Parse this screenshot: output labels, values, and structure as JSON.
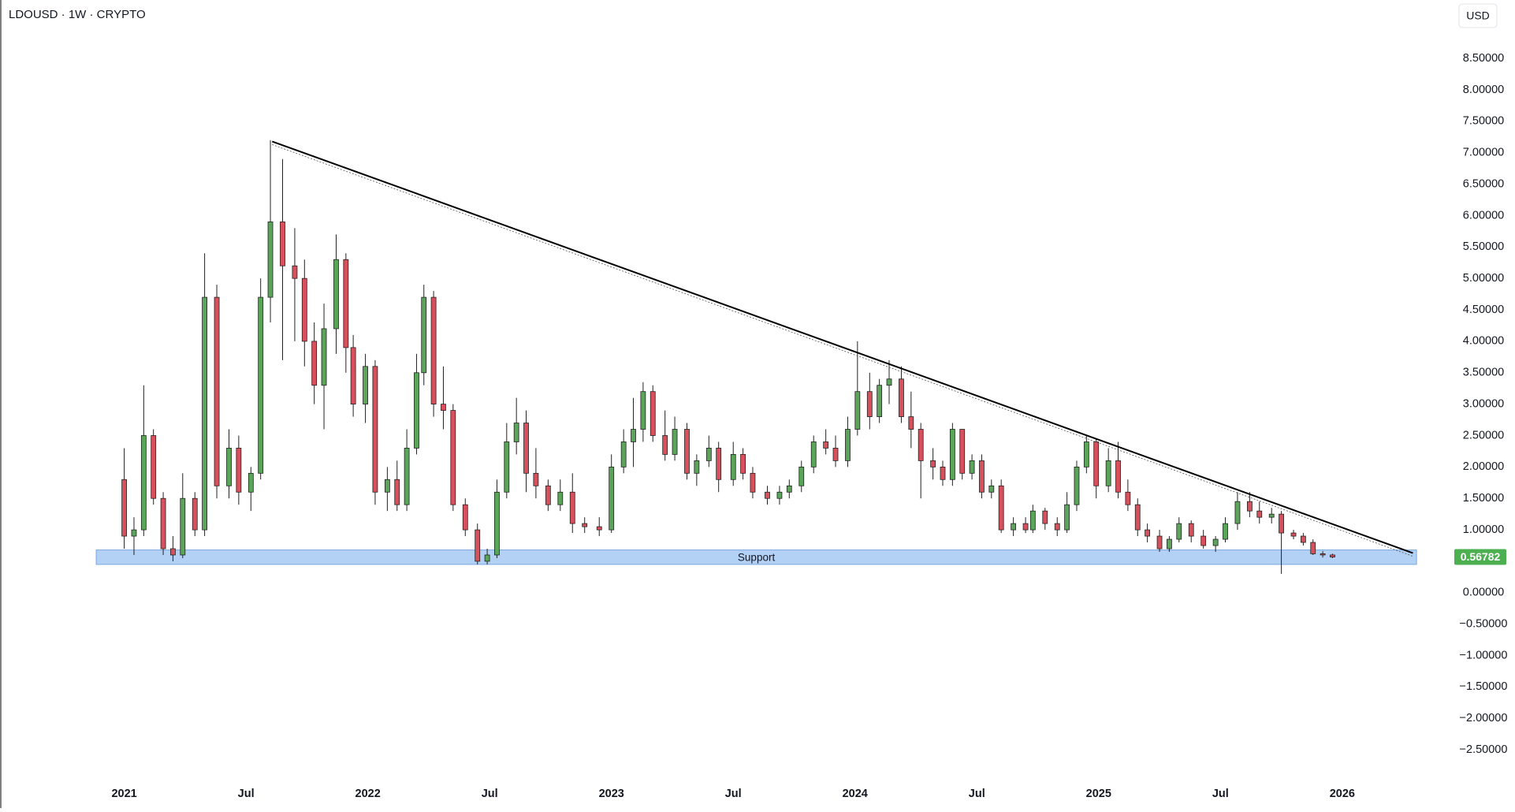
{
  "chart_data": {
    "type": "candlestick",
    "title": "LDOUSD · 1W · CRYPTO",
    "currency": "USD",
    "up_color": "#5aa55a",
    "down_color": "#d9505d",
    "x": [
      2021.0,
      2021.04,
      2021.08,
      2021.12,
      2021.16,
      2021.2,
      2021.24,
      2021.29,
      2021.33,
      2021.38,
      2021.43,
      2021.47,
      2021.52,
      2021.56,
      2021.6,
      2021.65,
      2021.7,
      2021.74,
      2021.78,
      2021.82,
      2021.87,
      2021.91,
      2021.94,
      2021.99,
      2022.03,
      2022.08,
      2022.12,
      2022.16,
      2022.2,
      2022.23,
      2022.27,
      2022.31,
      2022.35,
      2022.4,
      2022.45,
      2022.49,
      2022.53,
      2022.57,
      2022.61,
      2022.65,
      2022.69,
      2022.74,
      2022.79,
      2022.84,
      2022.89,
      2022.95,
      2023.0,
      2023.05,
      2023.09,
      2023.13,
      2023.17,
      2023.22,
      2023.26,
      2023.31,
      2023.35,
      2023.4,
      2023.44,
      2023.5,
      2023.54,
      2023.58,
      2023.64,
      2023.69,
      2023.73,
      2023.78,
      2023.83,
      2023.88,
      2023.92,
      2023.97,
      2024.01,
      2024.06,
      2024.1,
      2024.14,
      2024.19,
      2024.23,
      2024.27,
      2024.32,
      2024.36,
      2024.4,
      2024.44,
      2024.48,
      2024.52,
      2024.56,
      2024.6,
      2024.65,
      2024.7,
      2024.73,
      2024.78,
      2024.83,
      2024.87,
      2024.91,
      2024.95,
      2024.99,
      2025.04,
      2025.08,
      2025.12,
      2025.16,
      2025.2,
      2025.25,
      2025.29,
      2025.33,
      2025.38,
      2025.43,
      2025.48,
      2025.52,
      2025.57,
      2025.62,
      2025.66,
      2025.71,
      2025.75,
      2025.8,
      2025.84,
      2025.88,
      2025.92,
      2025.96
    ],
    "open": [
      1.8,
      0.9,
      1.0,
      2.5,
      1.5,
      0.7,
      0.6,
      1.5,
      1.0,
      4.7,
      1.7,
      2.3,
      1.6,
      1.9,
      4.7,
      5.9,
      5.2,
      5.0,
      4.0,
      3.3,
      4.2,
      5.3,
      3.9,
      3.0,
      3.6,
      1.6,
      1.8,
      1.4,
      2.3,
      3.5,
      4.7,
      3.0,
      2.9,
      1.4,
      1.0,
      0.5,
      0.6,
      1.6,
      2.4,
      2.7,
      1.9,
      1.7,
      1.4,
      1.6,
      1.1,
      1.05,
      1.0,
      2.0,
      2.4,
      2.6,
      3.2,
      2.5,
      2.2,
      2.6,
      1.9,
      2.1,
      2.3,
      1.8,
      2.2,
      1.9,
      1.6,
      1.5,
      1.6,
      1.7,
      2.0,
      2.4,
      2.3,
      2.1,
      2.6,
      3.2,
      2.8,
      3.3,
      3.4,
      2.8,
      2.6,
      2.1,
      2.0,
      1.8,
      2.6,
      1.9,
      2.1,
      1.6,
      1.7,
      1.0,
      1.1,
      1.0,
      1.3,
      1.1,
      1.0,
      1.4,
      2.0,
      2.4,
      1.7,
      2.1,
      1.6,
      1.4,
      1.0,
      0.9,
      0.7,
      0.85,
      1.1,
      0.9,
      0.75,
      0.85,
      1.1,
      1.45,
      1.3,
      1.2,
      1.25,
      0.95,
      0.9,
      0.8,
      0.62,
      0.6
    ],
    "high": [
      2.3,
      1.2,
      3.3,
      2.6,
      1.6,
      0.9,
      1.9,
      1.6,
      5.4,
      4.9,
      2.6,
      2.5,
      2.0,
      5.0,
      7.2,
      6.9,
      5.8,
      5.3,
      4.3,
      4.6,
      5.7,
      5.4,
      4.1,
      3.8,
      3.7,
      2.0,
      2.1,
      2.6,
      3.8,
      4.9,
      4.8,
      3.6,
      3.0,
      1.5,
      1.1,
      0.7,
      1.8,
      2.7,
      3.1,
      2.9,
      2.3,
      1.8,
      1.8,
      1.9,
      1.2,
      1.2,
      2.2,
      2.6,
      3.1,
      3.35,
      3.3,
      2.9,
      2.8,
      2.7,
      2.2,
      2.5,
      2.4,
      2.4,
      2.3,
      2.0,
      1.7,
      1.7,
      1.8,
      2.1,
      2.5,
      2.6,
      2.5,
      2.8,
      4.0,
      3.5,
      3.4,
      3.7,
      3.6,
      3.2,
      2.7,
      2.3,
      2.1,
      2.7,
      2.6,
      2.2,
      2.2,
      1.8,
      1.8,
      1.2,
      1.2,
      1.4,
      1.35,
      1.2,
      1.6,
      2.1,
      2.5,
      2.45,
      2.3,
      2.4,
      1.8,
      1.5,
      1.1,
      1.0,
      0.9,
      1.2,
      1.15,
      1.0,
      0.9,
      1.2,
      1.6,
      1.6,
      1.45,
      1.35,
      1.3,
      1.0,
      0.95,
      0.85,
      0.66,
      0.62
    ],
    "low": [
      0.7,
      0.6,
      0.9,
      1.4,
      0.6,
      0.5,
      0.55,
      0.9,
      0.9,
      1.5,
      1.5,
      1.4,
      1.3,
      1.8,
      4.3,
      3.7,
      4.0,
      3.6,
      3.0,
      2.6,
      3.8,
      3.5,
      2.8,
      2.7,
      1.4,
      1.3,
      1.3,
      1.3,
      2.2,
      3.3,
      2.8,
      2.6,
      1.3,
      0.9,
      0.45,
      0.45,
      0.55,
      1.5,
      2.2,
      1.6,
      1.5,
      1.3,
      1.3,
      0.95,
      0.95,
      0.9,
      0.95,
      1.9,
      2.0,
      2.4,
      2.4,
      2.1,
      2.1,
      1.8,
      1.7,
      2.0,
      1.6,
      1.7,
      1.8,
      1.5,
      1.4,
      1.4,
      1.5,
      1.6,
      1.9,
      2.2,
      2.0,
      2.0,
      2.5,
      2.6,
      2.7,
      3.0,
      2.7,
      2.3,
      1.5,
      1.8,
      1.7,
      1.7,
      1.8,
      1.8,
      1.5,
      1.5,
      0.95,
      0.9,
      0.95,
      0.95,
      1.0,
      0.9,
      0.95,
      1.3,
      1.9,
      1.5,
      1.6,
      1.5,
      1.3,
      0.9,
      0.8,
      0.65,
      0.65,
      0.8,
      0.8,
      0.7,
      0.65,
      0.8,
      1.0,
      1.2,
      1.1,
      1.1,
      0.3,
      0.85,
      0.75,
      0.6,
      0.56,
      0.55
    ],
    "close": [
      0.9,
      1.0,
      2.5,
      1.5,
      0.7,
      0.6,
      1.5,
      1.0,
      4.7,
      1.7,
      2.3,
      1.6,
      1.9,
      4.7,
      5.9,
      5.2,
      5.0,
      4.0,
      3.3,
      4.2,
      5.3,
      3.9,
      3.0,
      3.6,
      1.6,
      1.8,
      1.4,
      2.3,
      3.5,
      4.7,
      3.0,
      2.9,
      1.4,
      1.0,
      0.5,
      0.6,
      1.6,
      2.4,
      2.7,
      1.9,
      1.7,
      1.4,
      1.6,
      1.1,
      1.05,
      1.0,
      2.0,
      2.4,
      2.6,
      3.2,
      2.5,
      2.2,
      2.6,
      1.9,
      2.1,
      2.3,
      1.8,
      2.2,
      1.9,
      1.6,
      1.5,
      1.6,
      1.7,
      2.0,
      2.4,
      2.3,
      2.1,
      2.6,
      3.2,
      2.8,
      3.3,
      3.4,
      2.8,
      2.6,
      2.1,
      2.0,
      1.8,
      2.6,
      1.9,
      2.1,
      1.6,
      1.7,
      1.0,
      1.1,
      1.0,
      1.3,
      1.1,
      1.0,
      1.4,
      2.0,
      2.4,
      1.7,
      2.1,
      1.6,
      1.4,
      1.0,
      0.9,
      0.7,
      0.85,
      1.1,
      0.9,
      0.75,
      0.85,
      1.1,
      1.45,
      1.3,
      1.2,
      1.25,
      0.95,
      0.9,
      0.8,
      0.62,
      0.6,
      0.56782
    ],
    "xlim": [
      2020.49,
      2026.46
    ],
    "xticks": [
      2021,
      {
        "value": 2021.5,
        "label": "Jul"
      },
      2022,
      {
        "value": 2022.5,
        "label": "Jul"
      },
      2023,
      {
        "value": 2023.5,
        "label": "Jul"
      },
      2024,
      {
        "value": 2024.5,
        "label": "Jul"
      },
      2025,
      {
        "value": 2025.5,
        "label": "Jul"
      },
      2026
    ],
    "ylim": [
      -2.95,
      9.43
    ],
    "yticks": [
      {
        "value": 8.5,
        "label": "8.50000"
      },
      {
        "value": 8,
        "label": "8.00000"
      },
      {
        "value": 7.5,
        "label": "7.50000"
      },
      {
        "value": 7,
        "label": "7.00000"
      },
      {
        "value": 6.5,
        "label": "6.50000"
      },
      {
        "value": 6,
        "label": "6.00000"
      },
      {
        "value": 5.5,
        "label": "5.50000"
      },
      {
        "value": 5,
        "label": "5.00000"
      },
      {
        "value": 4.5,
        "label": "4.50000"
      },
      {
        "value": 4,
        "label": "4.00000"
      },
      {
        "value": 3.5,
        "label": "3.50000"
      },
      {
        "value": 3,
        "label": "3.00000"
      },
      {
        "value": 2.5,
        "label": "2.50000"
      },
      {
        "value": 2,
        "label": "2.00000"
      },
      {
        "value": 1.5,
        "label": "1.50000"
      },
      {
        "value": 1,
        "label": "1.00000"
      },
      {
        "value": 0.5,
        "label": "0.50000"
      },
      {
        "value": 0,
        "label": "0.00000"
      },
      {
        "value": -0.5,
        "label": "−0.50000"
      },
      {
        "value": -1,
        "label": "−1.00000"
      },
      {
        "value": -1.5,
        "label": "−1.50000"
      },
      {
        "value": -2,
        "label": "−2.00000"
      },
      {
        "value": -2.5,
        "label": "−2.50000"
      }
    ],
    "trendline": {
      "x": [
        2021.607,
        2026.29
      ],
      "y": [
        7.18,
        0.63
      ],
      "color": "#000000"
    },
    "support_zone": {
      "label": "Support",
      "x": [
        2020.885,
        2026.305
      ],
      "y": [
        0.45,
        0.68
      ],
      "color": "#b3d1f5"
    },
    "last_price_color": "#4caf50"
  }
}
